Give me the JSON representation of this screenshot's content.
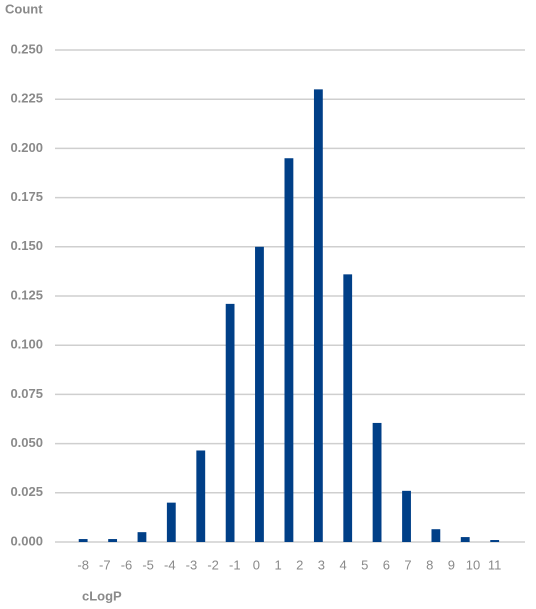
{
  "chart_data": {
    "type": "histogram",
    "ylabel": "Count",
    "xlabel": "cLogP",
    "bins": [
      -8.68,
      -7.32,
      -5.96,
      -4.61,
      -3.25,
      -1.89,
      -0.54,
      0.82,
      2.18,
      3.54,
      4.89,
      6.25,
      7.61,
      8.96,
      10.32,
      11.68
    ],
    "values": [
      0.0015,
      0.0015,
      0.005,
      0.02,
      0.0465,
      0.121,
      0.15,
      0.195,
      0.23,
      0.136,
      0.0605,
      0.026,
      0.0065,
      0.0025,
      0.001
    ],
    "color": "#003f87",
    "xlim": [
      -9.3,
      12.4
    ],
    "xticks": [
      -8,
      -7,
      -6,
      -5,
      -4,
      -3,
      -2,
      -1,
      0,
      1,
      2,
      3,
      4,
      5,
      6,
      7,
      8,
      9,
      10,
      11
    ],
    "ylim": [
      0,
      0.25
    ],
    "yticks": [
      {
        "value": 0,
        "label": "0.000"
      },
      0.025,
      {
        "value": 0.05,
        "label": "0.050"
      },
      0.075,
      {
        "value": 0.1,
        "label": "0.100"
      },
      0.125,
      {
        "value": 0.15,
        "label": "0.150"
      },
      0.175,
      {
        "value": 0.2,
        "label": "0.200"
      },
      0.225,
      {
        "value": 0.25,
        "label": "0.250"
      }
    ],
    "grid": true
  }
}
